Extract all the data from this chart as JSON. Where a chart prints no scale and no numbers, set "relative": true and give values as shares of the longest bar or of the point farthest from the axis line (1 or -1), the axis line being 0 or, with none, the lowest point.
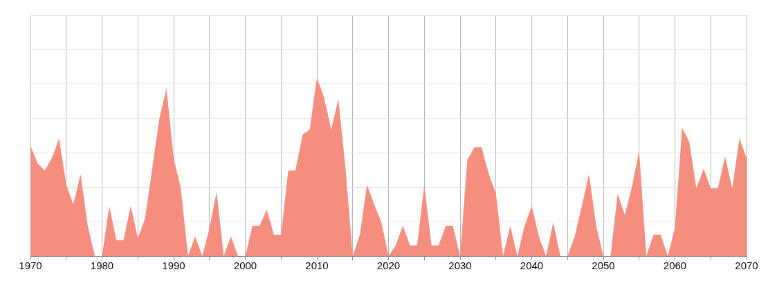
{
  "chart_data": {
    "type": "area",
    "relative": true,
    "color": "#f58e7e",
    "grid": true,
    "xlim": [
      1970,
      2070
    ],
    "xticks": [
      1970,
      {
        "value": 1975,
        "label": null
      },
      1980,
      {
        "value": 1985,
        "label": null
      },
      1990,
      {
        "value": 1995,
        "label": null
      },
      2000,
      {
        "value": 2005,
        "label": null
      },
      2010,
      {
        "value": 2015,
        "label": null
      },
      2020,
      {
        "value": 2025,
        "label": null
      },
      2030,
      {
        "value": 2035,
        "label": null
      },
      2040,
      {
        "value": 2045,
        "label": null
      },
      2050,
      {
        "value": 2055,
        "label": null
      },
      2060,
      {
        "value": 2065,
        "label": null
      },
      2070
    ],
    "x": [
      1970,
      1971,
      1972,
      1973,
      1974,
      1975,
      1976,
      1977,
      1978,
      1979,
      1980,
      1981,
      1982,
      1983,
      1984,
      1985,
      1986,
      1987,
      1988,
      1989,
      1990,
      1991,
      1992,
      1993,
      1994,
      1995,
      1996,
      1997,
      1998,
      1999,
      2000,
      2001,
      2002,
      2003,
      2004,
      2005,
      2006,
      2007,
      2008,
      2009,
      2010,
      2011,
      2012,
      2013,
      2014,
      2015,
      2016,
      2017,
      2018,
      2019,
      2020,
      2021,
      2022,
      2023,
      2024,
      2025,
      2026,
      2027,
      2028,
      2029,
      2030,
      2031,
      2032,
      2033,
      2034,
      2035,
      2036,
      2037,
      2038,
      2039,
      2040,
      2041,
      2042,
      2043,
      2044,
      2045,
      2046,
      2047,
      2048,
      2049,
      2050,
      2051,
      2052,
      2053,
      2054,
      2055,
      2056,
      2057,
      2058,
      2059,
      2060,
      2061,
      2062,
      2063,
      2064,
      2065,
      2066,
      2067,
      2068,
      2069,
      2070
    ],
    "values": [
      0.62,
      0.52,
      0.48,
      0.55,
      0.66,
      0.4,
      0.29,
      0.46,
      0.17,
      0,
      0,
      0.28,
      0.09,
      0.09,
      0.28,
      0.1,
      0.21,
      0.49,
      0.77,
      0.94,
      0.55,
      0.38,
      0,
      0.11,
      0,
      0.16,
      0.36,
      0,
      0.11,
      0,
      0,
      0.17,
      0.17,
      0.26,
      0.12,
      0.12,
      0.48,
      0.48,
      0.68,
      0.71,
      1,
      0.89,
      0.71,
      0.88,
      0.49,
      0,
      0.12,
      0.4,
      0.29,
      0.19,
      0,
      0.06,
      0.17,
      0.06,
      0.06,
      0.4,
      0.06,
      0.06,
      0.17,
      0.17,
      0,
      0.54,
      0.61,
      0.61,
      0.46,
      0.35,
      0,
      0.17,
      0,
      0.17,
      0.28,
      0.11,
      0,
      0.19,
      0,
      0,
      0.11,
      0.28,
      0.46,
      0.17,
      0,
      0,
      0.35,
      0.23,
      0.39,
      0.59,
      0,
      0.12,
      0.12,
      0,
      0.16,
      0.72,
      0.64,
      0.38,
      0.49,
      0.38,
      0.38,
      0.56,
      0.38,
      0.66,
      0.55
    ]
  }
}
